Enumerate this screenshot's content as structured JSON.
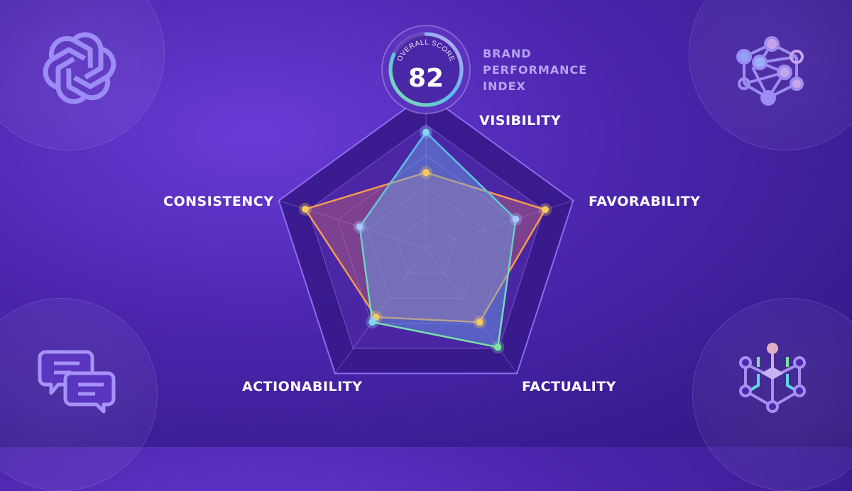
{
  "badge": {
    "caption": "OVERALL SCORE",
    "score": "82",
    "progress_percent": 82
  },
  "title_lines": [
    "BRAND",
    "PERFORMANCE",
    "INDEX"
  ],
  "icons": {
    "top_left": "openai-logo-icon",
    "top_right": "network-graph-icon",
    "bottom_left": "chat-bubbles-icon",
    "bottom_right": "circuit-cube-icon"
  },
  "colors": {
    "background": "#4d27b0",
    "series_blue": "#5ab8f0",
    "series_green": "#7be3a0",
    "series_orange": "#f59a4e",
    "point_yellow": "#f5c860"
  },
  "chart_data": {
    "type": "radar",
    "axes": [
      "VISIBILITY",
      "FAVORABILITY",
      "FACTUALITY",
      "ACTIONABILITY",
      "CONSISTENCY"
    ],
    "range": [
      0,
      100
    ],
    "grid": true,
    "grid_levels": [
      20,
      40,
      60,
      80,
      100
    ],
    "series": [
      {
        "color": "#f59a4e",
        "values": [
          49,
          81,
          59,
          55,
          82
        ]
      },
      {
        "color": "#5ab8f0",
        "values": [
          75,
          61,
          79,
          59,
          45
        ]
      }
    ]
  }
}
